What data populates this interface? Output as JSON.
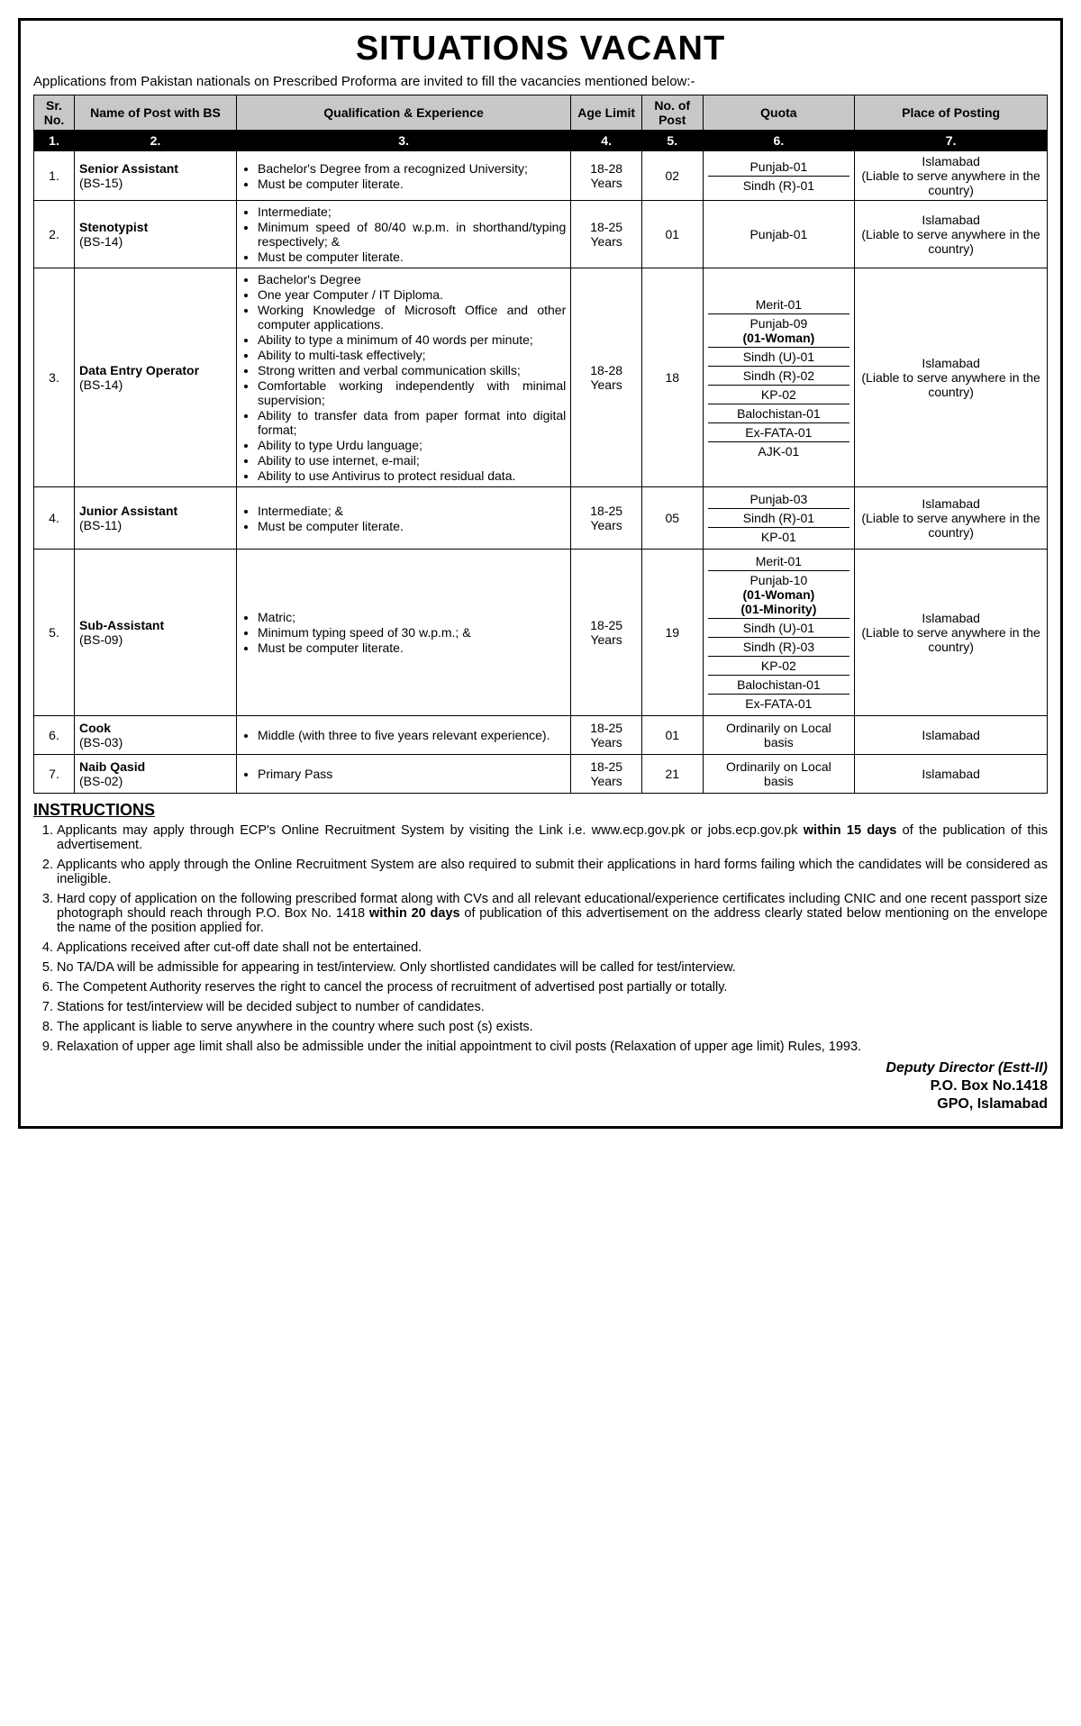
{
  "title": "SITUATIONS VACANT",
  "intro": "Applications from Pakistan nationals on Prescribed Proforma are invited to fill the vacancies mentioned below:-",
  "headers": [
    "Sr. No.",
    "Name of Post with BS",
    "Qualification & Experience",
    "Age Limit",
    "No. of Post",
    "Quota",
    "Place of Posting"
  ],
  "colnums": [
    "1.",
    "2.",
    "3.",
    "4.",
    "5.",
    "6.",
    "7."
  ],
  "rows": [
    {
      "sr": "1.",
      "post_name": "Senior Assistant",
      "post_bs": "(BS-15)",
      "qual": [
        "Bachelor's Degree from a recognized University;",
        "Must be computer literate."
      ],
      "age": "18-28 Years",
      "num": "02",
      "quota": [
        "Punjab-01",
        "Sindh (R)-01"
      ],
      "place": "Islamabad\n(Liable to serve anywhere in the country)"
    },
    {
      "sr": "2.",
      "post_name": "Stenotypist",
      "post_bs": "(BS-14)",
      "qual": [
        "Intermediate;",
        "Minimum speed of 80/40 w.p.m. in shorthand/typing respectively; &",
        "Must be computer literate."
      ],
      "age": "18-25 Years",
      "num": "01",
      "quota": [
        "Punjab-01"
      ],
      "place": "Islamabad\n(Liable to serve anywhere in the country)"
    },
    {
      "sr": "3.",
      "post_name": "Data Entry Operator",
      "post_bs": "(BS-14)",
      "qual": [
        "Bachelor's Degree",
        "One year Computer / IT Diploma.",
        "Working Knowledge of Microsoft Office and other computer applications.",
        "Ability to type a minimum of 40 words per minute;",
        "Ability to multi-task effectively;",
        "Strong written and verbal communication skills;",
        "Comfortable working independently with minimal supervision;",
        "Ability to transfer data from paper format into digital format;",
        "Ability to type Urdu language;",
        "Ability to use internet, e-mail;",
        "Ability to use Antivirus to protect residual data."
      ],
      "age": "18-28 Years",
      "num": "18",
      "quota": [
        "Merit-01",
        "Punjab-09\n<b>(01-Woman)</b>",
        "Sindh (U)-01",
        "Sindh (R)-02",
        "KP-02",
        "Balochistan-01",
        "Ex-FATA-01",
        "AJK-01"
      ],
      "place": "Islamabad\n(Liable to serve anywhere in the country)"
    },
    {
      "sr": "4.",
      "post_name": "Junior Assistant",
      "post_bs": "(BS-11)",
      "qual": [
        "Intermediate; &",
        "Must be computer literate."
      ],
      "age": "18-25 Years",
      "num": "05",
      "quota": [
        "Punjab-03",
        "Sindh (R)-01",
        "KP-01"
      ],
      "place": "Islamabad\n(Liable to serve anywhere in the country)"
    },
    {
      "sr": "5.",
      "post_name": "Sub-Assistant",
      "post_bs": "(BS-09)",
      "qual": [
        "Matric;",
        "Minimum typing speed of 30 w.p.m.; &",
        "Must be computer literate."
      ],
      "age": "18-25 Years",
      "num": "19",
      "quota": [
        "Merit-01",
        "Punjab-10\n<b>(01-Woman)\n(01-Minority)</b>",
        "Sindh (U)-01",
        "Sindh (R)-03",
        "KP-02",
        "Balochistan-01",
        "Ex-FATA-01"
      ],
      "place": "Islamabad\n(Liable to serve anywhere in the country)"
    },
    {
      "sr": "6.",
      "post_name": "Cook",
      "post_bs": "(BS-03)",
      "qual": [
        "Middle (with three to five years relevant experience)."
      ],
      "age": "18-25 Years",
      "num": "01",
      "quota": [
        "Ordinarily on Local basis"
      ],
      "place": "Islamabad"
    },
    {
      "sr": "7.",
      "post_name": "Naib Qasid",
      "post_bs": "(BS-02)",
      "qual": [
        "Primary Pass"
      ],
      "age": "18-25 Years",
      "num": "21",
      "quota": [
        "Ordinarily on Local basis"
      ],
      "place": "Islamabad"
    }
  ],
  "instructions_h": "INSTRUCTIONS",
  "instructions": [
    "Applicants may apply through ECP's Online Recruitment System by visiting the Link i.e. www.ecp.gov.pk or jobs.ecp.gov.pk <b>within 15 days</b> of the publication of this advertisement.",
    "Applicants who apply through the Online Recruitment System are also required to submit their applications in hard forms failing which the candidates will be considered as ineligible.",
    "Hard copy of application on the following prescribed format along with CVs and all relevant educational/experience certificates including CNIC and one recent passport size photograph should reach through P.O. Box No. 1418 <b>within 20 days</b> of publication of this advertisement on the address clearly stated below mentioning on the envelope the name of the position applied for.",
    "Applications received after cut-off date shall not be entertained.",
    "No TA/DA will be admissible for appearing in test/interview. Only shortlisted candidates will be called for test/interview.",
    "The Competent Authority reserves the right to cancel the process of recruitment of advertised post partially or totally.",
    "Stations for test/interview will be decided subject to number of candidates.",
    "The applicant is liable to serve anywhere in the country where such post (s) exists.",
    "Relaxation of upper age limit shall also be admissible under the initial appointment to civil posts (Relaxation of upper age limit) Rules, 1993."
  ],
  "signature": {
    "line1": "Deputy Director (Estt-II)",
    "line2": "P.O. Box No.1418",
    "line3": "GPO, Islamabad"
  },
  "col_widths": [
    "4%",
    "16%",
    "33%",
    "7%",
    "6%",
    "15%",
    "19%"
  ]
}
